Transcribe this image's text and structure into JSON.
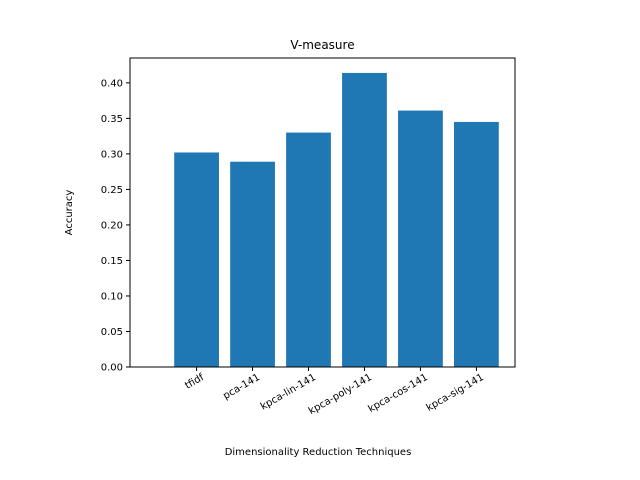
{
  "chart_data": {
    "type": "bar",
    "title": "V-measure",
    "xlabel": "Dimensionality Reduction Techniques",
    "ylabel": "Accuracy",
    "categories": [
      "tfidf",
      "pca-141",
      "kpca-lin-141",
      "kpca-poly-141",
      "kpca-cos-141",
      "kpca-sig-141"
    ],
    "values": [
      0.302,
      0.289,
      0.33,
      0.414,
      0.361,
      0.345
    ],
    "ylim": [
      0,
      0.435
    ],
    "yticks": [
      "0.00",
      "0.05",
      "0.10",
      "0.15",
      "0.20",
      "0.25",
      "0.30",
      "0.35",
      "0.40"
    ],
    "bar_color": "#1f77b4",
    "grid": false,
    "legend": "none"
  }
}
